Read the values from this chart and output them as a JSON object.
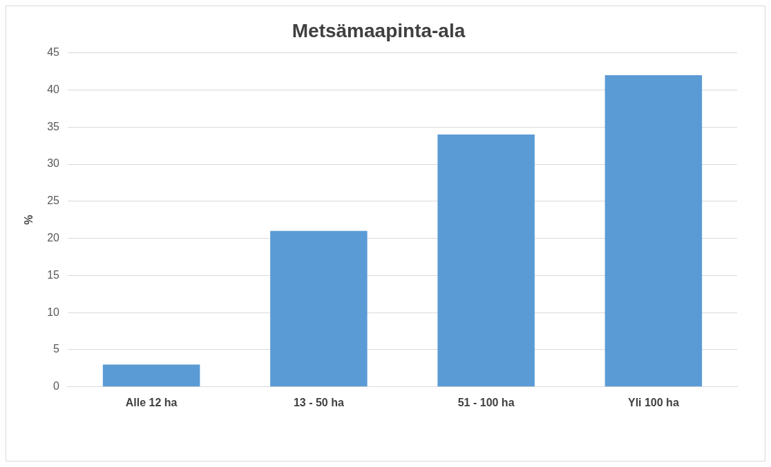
{
  "chart_data": {
    "type": "bar",
    "title": "Metsämaapinta-ala",
    "ylabel": "%",
    "categories": [
      "Alle 12 ha",
      "13 - 50 ha",
      "51 - 100 ha",
      "Yli 100 ha"
    ],
    "values": [
      3,
      21,
      34,
      42
    ],
    "color": "#5b9bd5",
    "ylim": [
      0,
      45
    ],
    "yticks": [
      0,
      5,
      10,
      15,
      20,
      25,
      30,
      35,
      40,
      45
    ],
    "grid": "y",
    "legend": false
  }
}
